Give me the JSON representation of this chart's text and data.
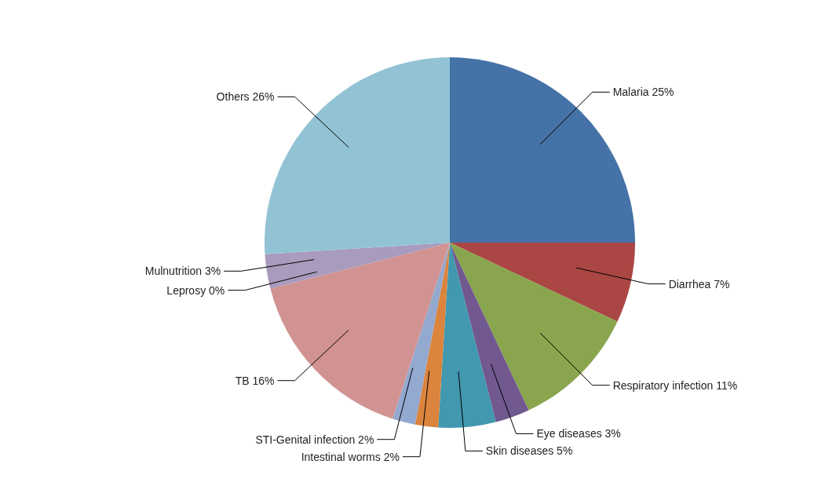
{
  "chart_data": {
    "type": "pie",
    "categories": [
      "Malaria",
      "Diarrhea",
      "Respiratory infection",
      "Eye diseases",
      "Skin diseases",
      "Intestinal worms",
      "STI-Genital infection",
      "TB",
      "Leprosy",
      "Mulnutrition",
      "Others"
    ],
    "values": [
      25,
      7,
      11,
      3,
      5,
      2,
      2,
      16,
      0,
      3,
      26
    ],
    "value_labels": [
      "25%",
      "7%",
      "11%",
      "3%",
      "5%",
      "2%",
      "2%",
      "16%",
      "0%",
      "3%",
      "26%"
    ],
    "colors": [
      "#4572a7",
      "#aa4643",
      "#89a54e",
      "#71588f",
      "#4198af",
      "#db843d",
      "#93a9cf",
      "#d19392",
      "#b9cd96",
      "#a99bbd",
      "#92c3d5"
    ]
  }
}
